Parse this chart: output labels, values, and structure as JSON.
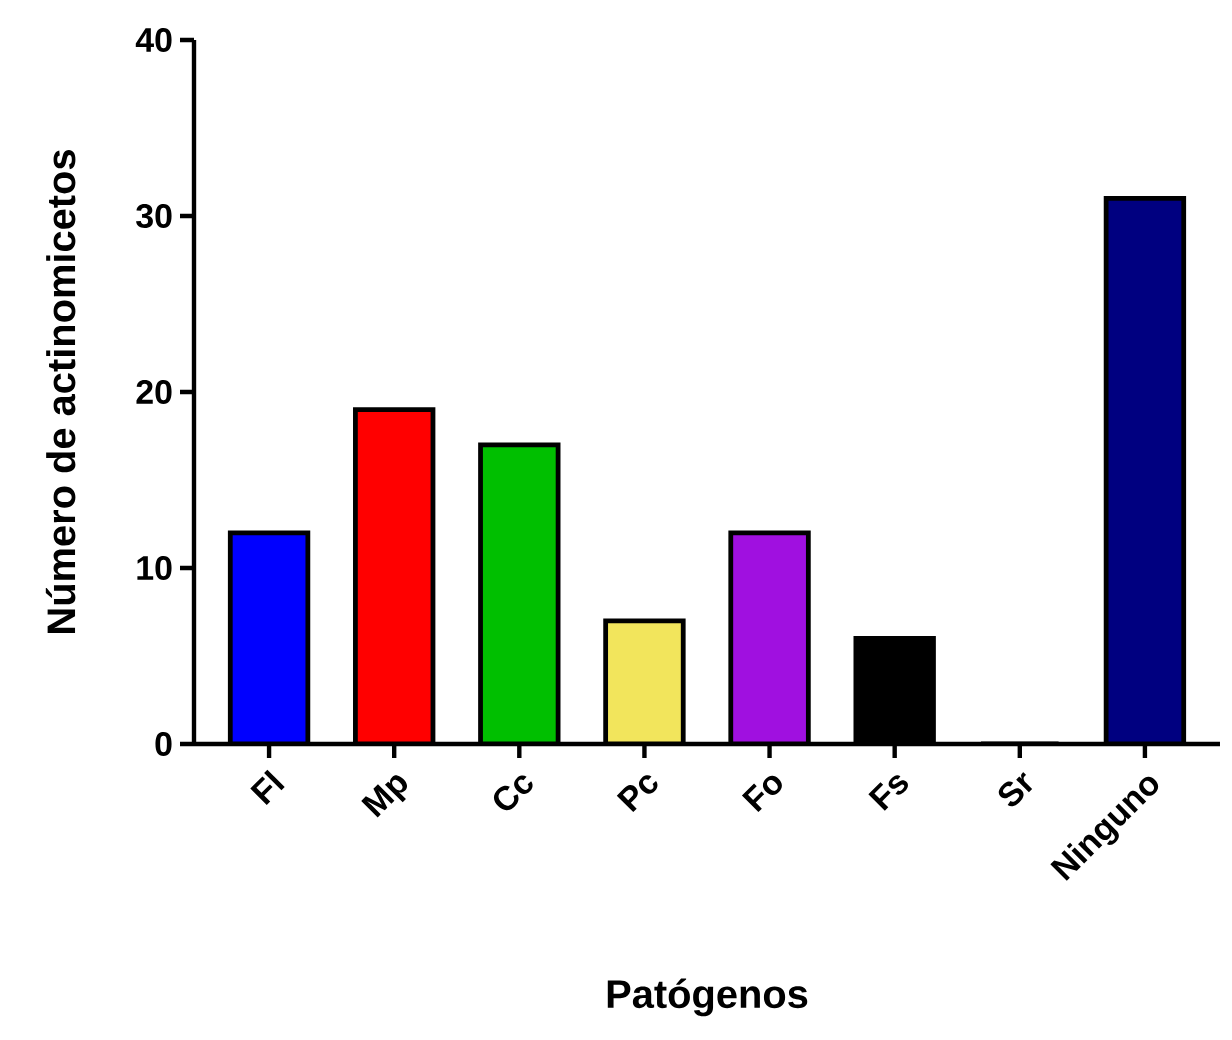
{
  "chart_data": {
    "type": "bar",
    "xlabel": "Patógenos",
    "ylabel": "Número de actinomicetos",
    "categories": [
      "Fl",
      "Mp",
      "Cc",
      "Pc",
      "Fo",
      "Fs",
      "Sr",
      "Ninguno"
    ],
    "values": [
      12,
      19,
      17,
      7,
      12,
      6,
      0,
      31
    ],
    "colors": [
      "#0000ff",
      "#ff0000",
      "#00bf00",
      "#f2e55c",
      "#a010e0",
      "#000000",
      "#ffffff",
      "#000080"
    ],
    "ylim": [
      0,
      40
    ],
    "yticks": [
      0,
      10,
      20,
      30,
      40
    ],
    "grid": false
  }
}
